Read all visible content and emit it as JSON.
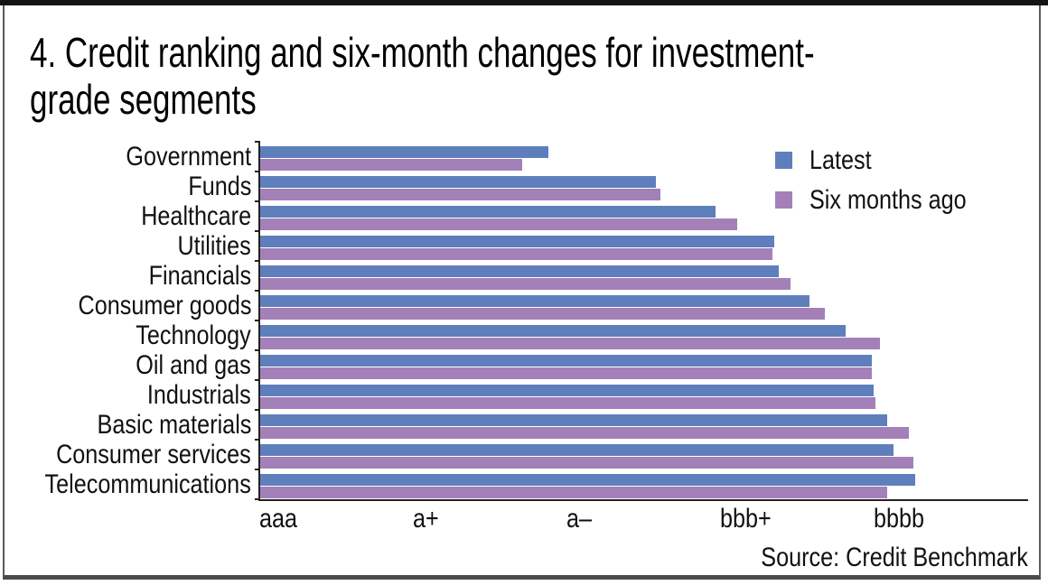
{
  "panel": {
    "title_line1": "4. Credit ranking and six-month changes for investment-",
    "title_line2": "grade segments",
    "source": "Source: Credit Benchmark"
  },
  "chart_data": {
    "type": "bar",
    "orientation": "horizontal",
    "title": "4. Credit ranking and six-month changes for investment-grade segments",
    "categories": [
      "Government",
      "Funds",
      "Healthcare",
      "Utilities",
      "Financials",
      "Consumer goods",
      "Technology",
      "Oil and gas",
      "Industrials",
      "Basic materials",
      "Consumer services",
      "Telecommunications"
    ],
    "series": [
      {
        "name": "Latest",
        "color": "#5f7fbc",
        "values": [
          1.88,
          2.58,
          2.97,
          3.35,
          3.38,
          3.58,
          3.82,
          3.99,
          4.0,
          4.09,
          4.13,
          4.27
        ]
      },
      {
        "name": "Six months ago",
        "color": "#a480b8",
        "values": [
          1.71,
          2.61,
          3.11,
          3.34,
          3.46,
          3.68,
          4.04,
          3.99,
          4.01,
          4.23,
          4.26,
          4.09
        ]
      }
    ],
    "x_ticks": [
      {
        "value": 0,
        "label": "aaa"
      },
      {
        "value": 1,
        "label": "a+"
      },
      {
        "value": 2,
        "label": "a–"
      },
      {
        "value": 3,
        "label": "bbb+"
      },
      {
        "value": 4,
        "label": "bbbb"
      }
    ],
    "xlim": [
      0,
      5
    ],
    "axis_unit": "credit-rating scale, tick index (aaa=0, a+=1, a–=2, bbb+=3, bbbb=4)",
    "legend_position": "top-right inside plot",
    "grid": false
  }
}
